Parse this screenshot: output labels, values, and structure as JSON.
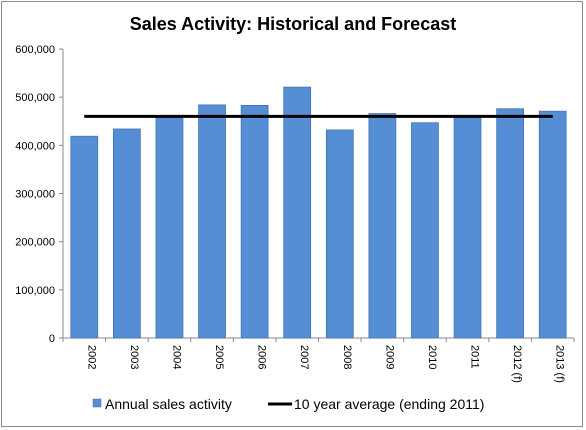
{
  "chart_data": {
    "type": "bar",
    "title": "Sales Activity: Historical and Forecast",
    "categories": [
      "2002",
      "2003",
      "2004",
      "2005",
      "2006",
      "2007",
      "2008",
      "2009",
      "2010",
      "2011",
      "2012 (f)",
      "2013 (f)"
    ],
    "series": [
      {
        "name": "Annual sales activity",
        "type": "bar",
        "color": "#558ed5",
        "values": [
          419000,
          434000,
          458000,
          484000,
          483000,
          521000,
          432000,
          466000,
          447000,
          459000,
          476000,
          471000
        ]
      },
      {
        "name": "10 year average (ending 2011)",
        "type": "line",
        "color": "#000000",
        "value": 460000
      }
    ],
    "yticks": [
      "0",
      "100,000",
      "200,000",
      "300,000",
      "400,000",
      "500,000",
      "600,000"
    ],
    "ylim": [
      0,
      600000
    ],
    "grid": false,
    "legend": "bottom"
  }
}
